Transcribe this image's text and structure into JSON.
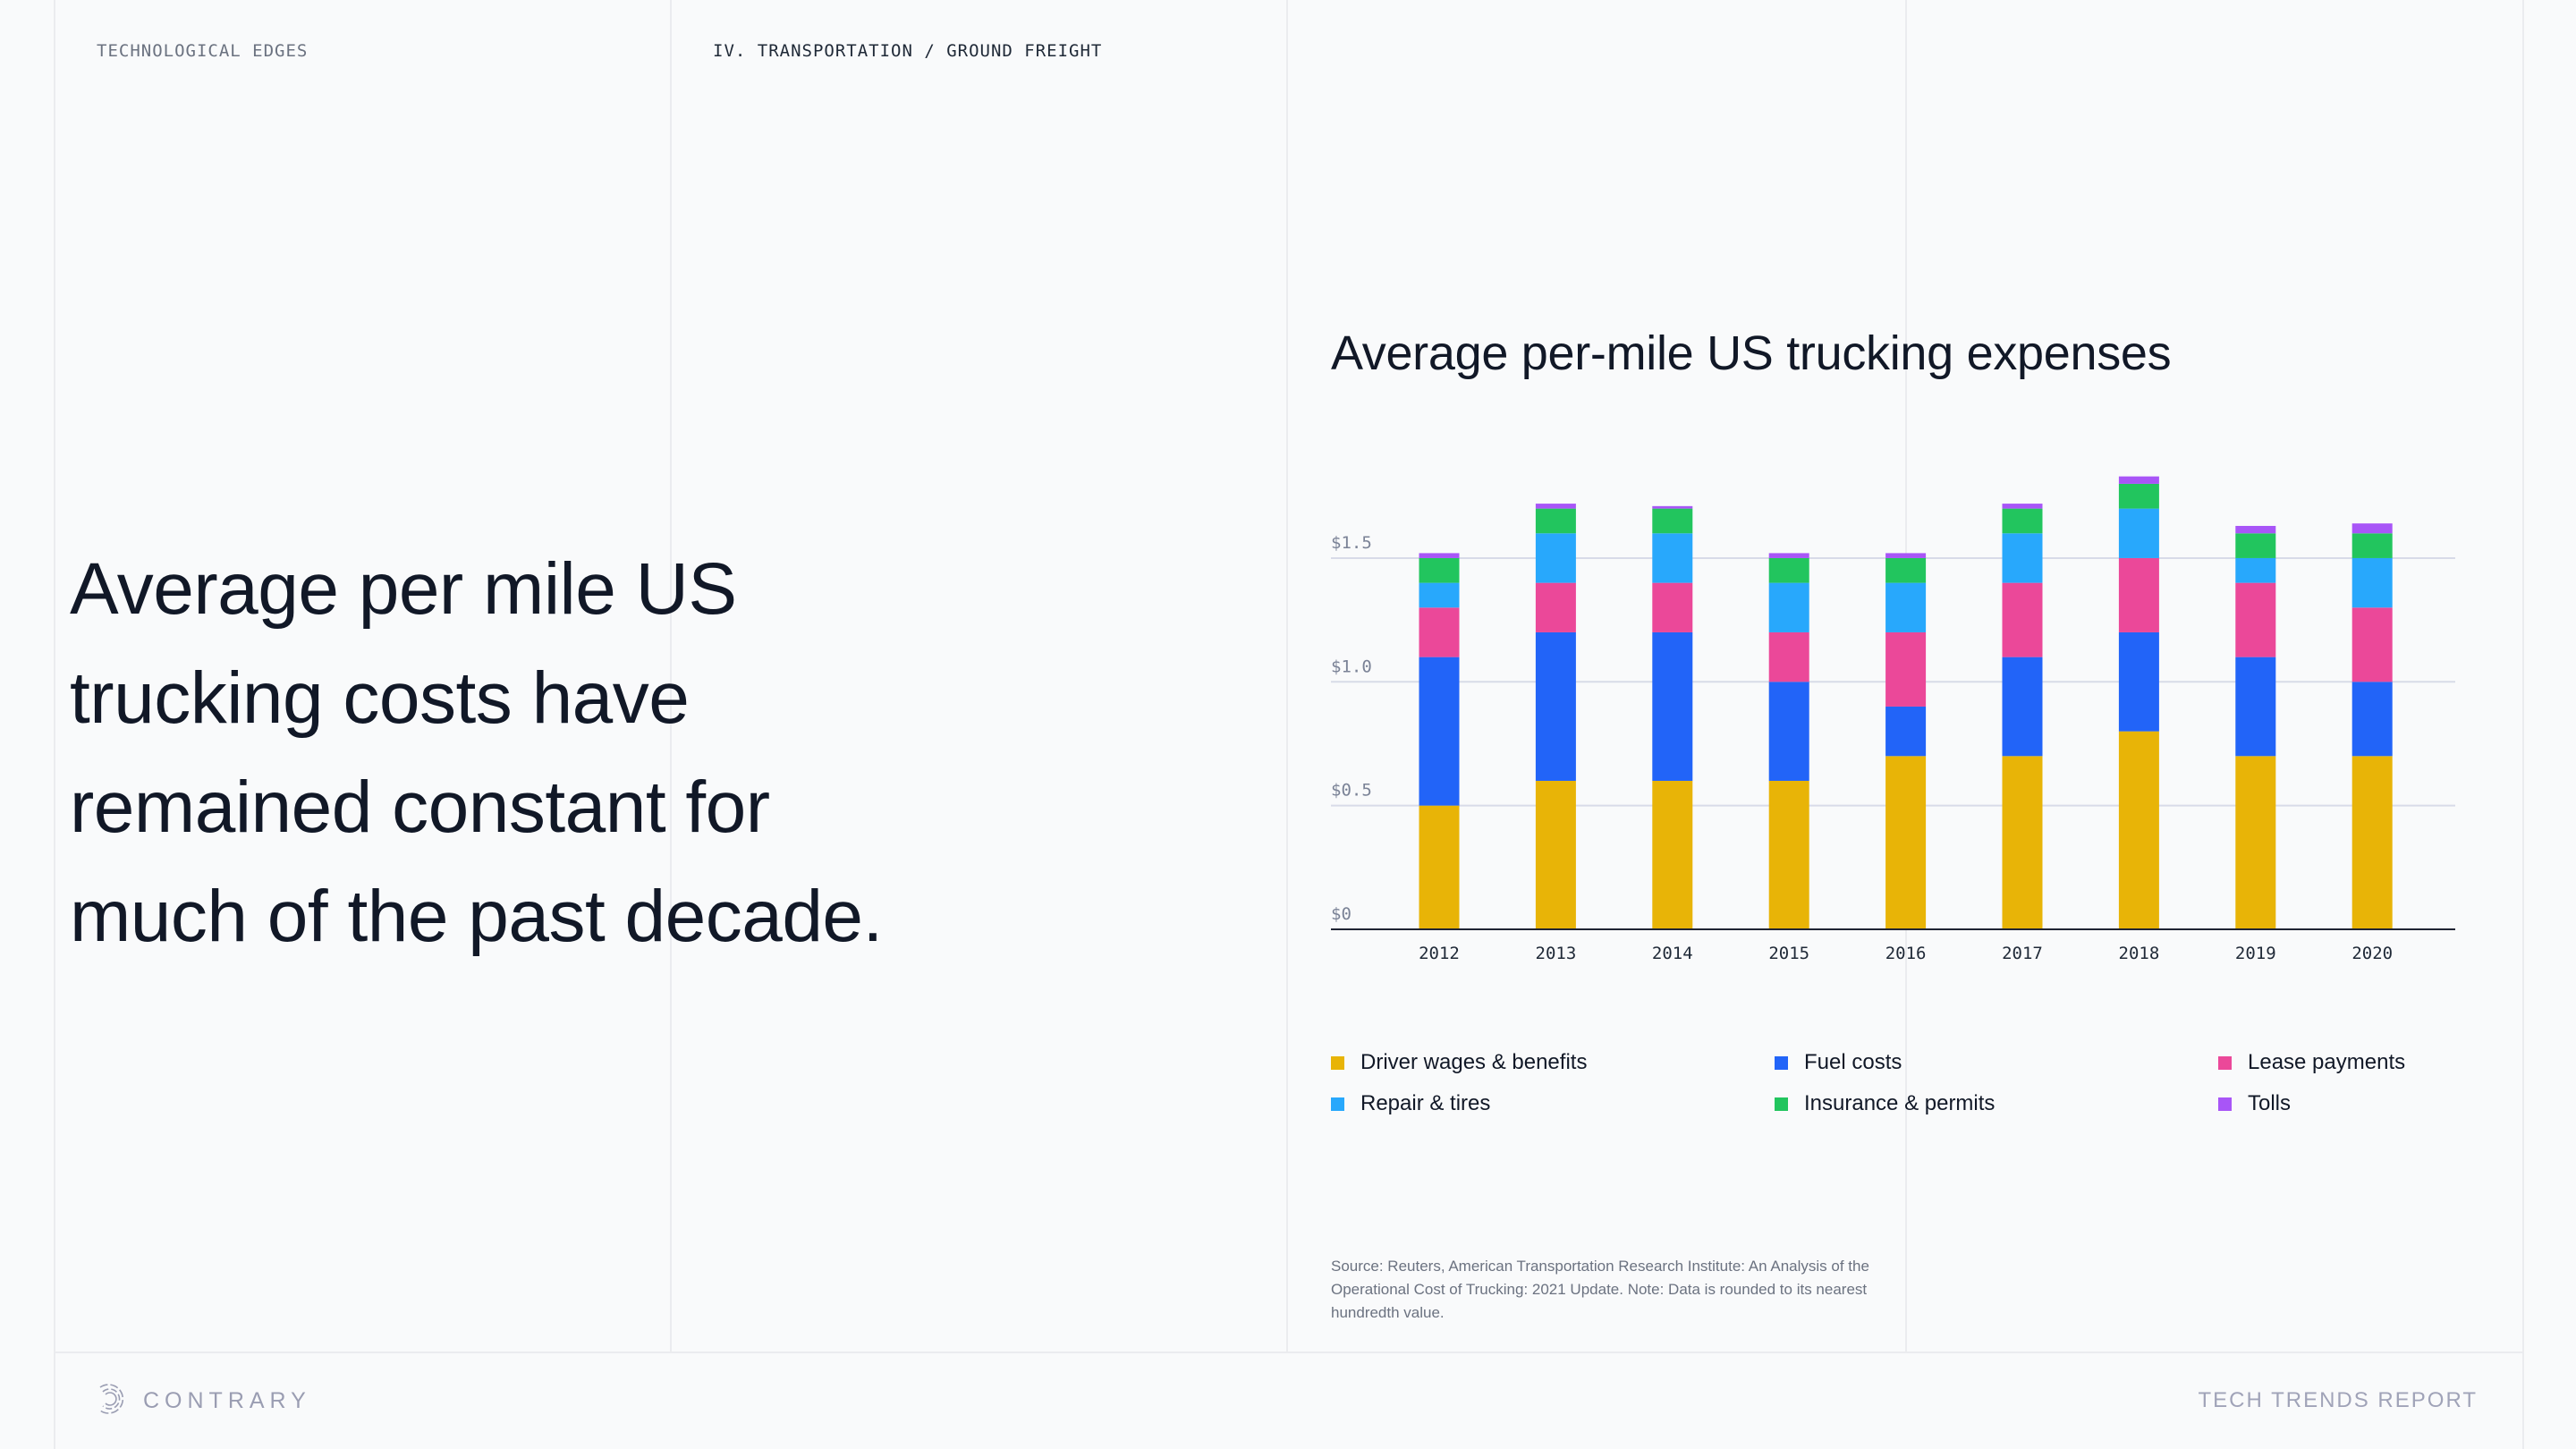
{
  "header": {
    "section_label": "TECHNOLOGICAL EDGES",
    "breadcrumb": "IV. TRANSPORTATION / GROUND FREIGHT"
  },
  "headline": {
    "lines": [
      "Average per mile US",
      "trucking costs have",
      "remained constant for",
      "much of the past decade."
    ]
  },
  "chart_data": {
    "type": "bar",
    "stacked": true,
    "title": "Average per-mile US trucking expenses",
    "xlabel": "",
    "ylabel": "",
    "ylim": [
      0,
      1.85
    ],
    "yticks": [
      0,
      0.5,
      1.0,
      1.5
    ],
    "ytick_labels": [
      "$0",
      "$0.5",
      "$1.0",
      "$1.5"
    ],
    "grid": true,
    "legend_position": "bottom",
    "categories": [
      "2012",
      "2013",
      "2014",
      "2015",
      "2016",
      "2017",
      "2018",
      "2019",
      "2020"
    ],
    "series": [
      {
        "name": "Driver wages & benefits",
        "color": "#e8b407",
        "values": [
          0.5,
          0.6,
          0.6,
          0.6,
          0.7,
          0.7,
          0.8,
          0.7,
          0.7
        ]
      },
      {
        "name": "Fuel costs",
        "color": "#2264f8",
        "values": [
          0.6,
          0.6,
          0.6,
          0.4,
          0.2,
          0.4,
          0.4,
          0.4,
          0.3
        ]
      },
      {
        "name": "Lease payments",
        "color": "#eb4899",
        "values": [
          0.2,
          0.2,
          0.2,
          0.2,
          0.3,
          0.3,
          0.3,
          0.3,
          0.3
        ]
      },
      {
        "name": "Repair & tires",
        "color": "#28a8fc",
        "values": [
          0.1,
          0.2,
          0.2,
          0.2,
          0.2,
          0.2,
          0.2,
          0.1,
          0.2
        ]
      },
      {
        "name": "Insurance & permits",
        "color": "#22c55e",
        "values": [
          0.1,
          0.1,
          0.1,
          0.1,
          0.1,
          0.1,
          0.1,
          0.1,
          0.1
        ]
      },
      {
        "name": "Tolls",
        "color": "#a855f7",
        "values": [
          0.02,
          0.02,
          0.01,
          0.02,
          0.02,
          0.02,
          0.03,
          0.03,
          0.04
        ]
      }
    ],
    "legend_order": [
      [
        "Driver wages & benefits",
        "Fuel costs",
        "Lease payments"
      ],
      [
        "Repair & tires",
        "Insurance & permits",
        "Tolls"
      ]
    ]
  },
  "source_note": "Source: Reuters, American Transportation Research Institute: An Analysis of the Operational Cost of Trucking: 2021 Update. Note: Data is rounded to its nearest hundredth value.",
  "footer": {
    "brand": "CONTRARY",
    "logo_icon": "contrary-logo-icon",
    "report_name": "TECH TRENDS REPORT"
  }
}
